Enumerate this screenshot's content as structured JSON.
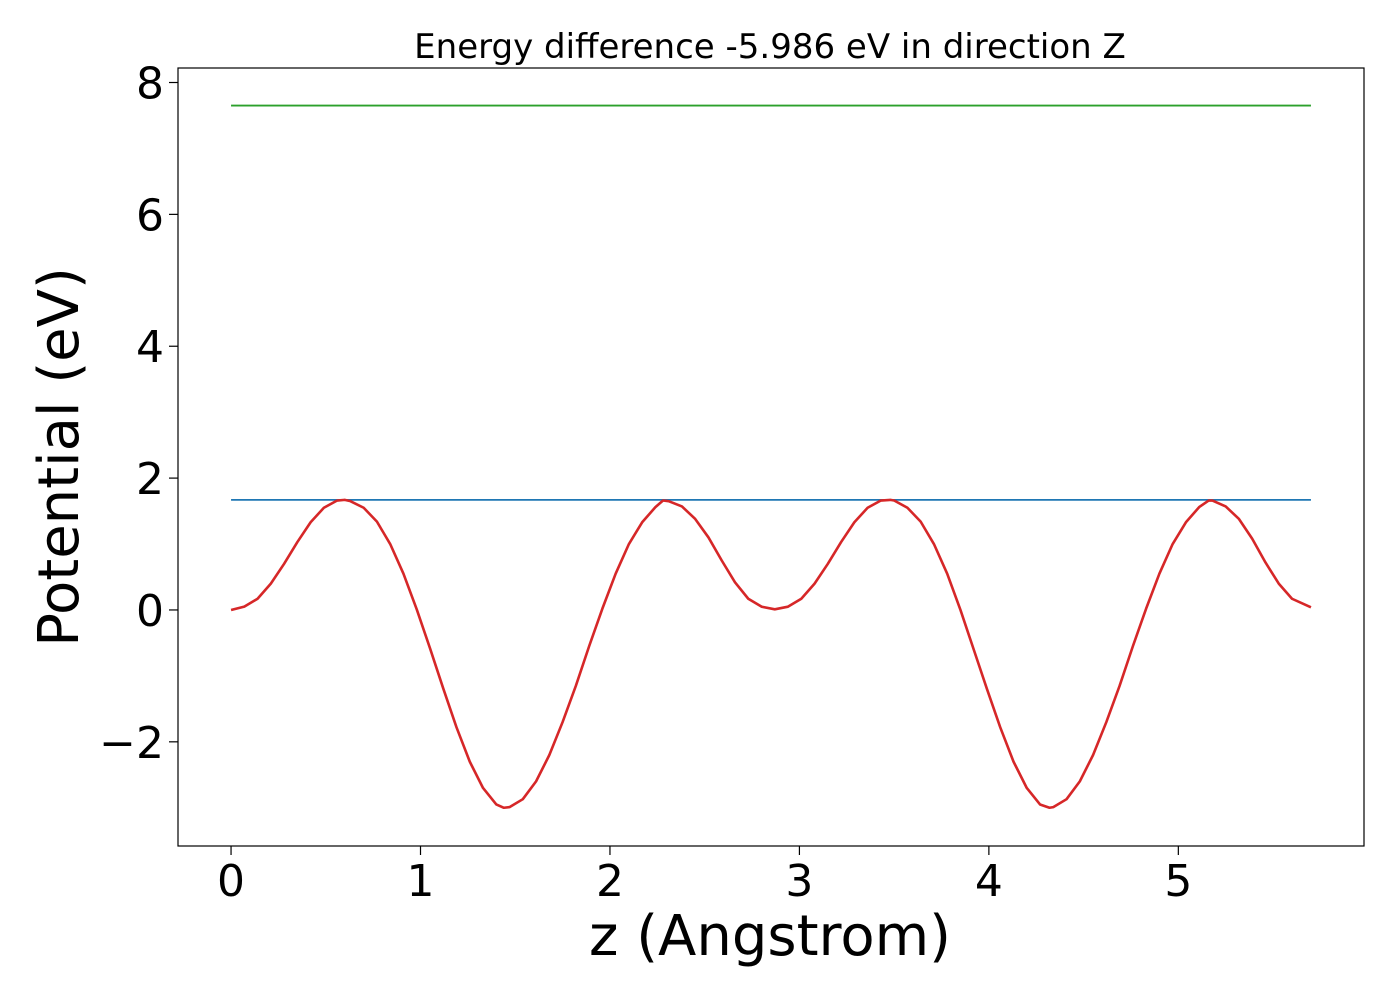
{
  "chart_data": {
    "type": "line",
    "title": "Energy difference -5.986 eV in direction Z",
    "xlabel": "z (Angstrom)",
    "ylabel": "Potential (eV)",
    "xlim": [
      -0.28,
      5.98
    ],
    "ylim": [
      -3.58,
      8.22
    ],
    "xticks": [
      0,
      1,
      2,
      3,
      4,
      5
    ],
    "xtick_labels": [
      "0",
      "1",
      "2",
      "3",
      "4",
      "5"
    ],
    "yticks": [
      -2,
      0,
      2,
      4,
      6,
      8
    ],
    "ytick_labels": [
      "−2",
      "0",
      "2",
      "4",
      "6",
      "8"
    ],
    "grid": false,
    "legend": null,
    "series": [
      {
        "color": "#2ca02c",
        "x": [
          0,
          5.7
        ],
        "y": [
          7.65,
          7.65
        ]
      },
      {
        "color": "#1f77b4",
        "x": [
          0,
          5.7
        ],
        "y": [
          1.67,
          1.67
        ]
      },
      {
        "color": "#d62728",
        "x": [
          0,
          0.07,
          0.14,
          0.21,
          0.28,
          0.35,
          0.42,
          0.49,
          0.56,
          0.6,
          0.63,
          0.7,
          0.77,
          0.84,
          0.91,
          0.98,
          1.05,
          1.12,
          1.19,
          1.26,
          1.33,
          1.4,
          1.44,
          1.47,
          1.54,
          1.61,
          1.68,
          1.75,
          1.82,
          1.89,
          1.96,
          2.03,
          2.1,
          2.17,
          2.24,
          2.28,
          2.31,
          2.38,
          2.45,
          2.52,
          2.59,
          2.66,
          2.73,
          2.8,
          2.87,
          2.94,
          3.01,
          3.08,
          3.15,
          3.22,
          3.29,
          3.36,
          3.43,
          3.48,
          3.5,
          3.57,
          3.64,
          3.71,
          3.78,
          3.85,
          3.92,
          3.99,
          4.06,
          4.13,
          4.2,
          4.27,
          4.32,
          4.34,
          4.41,
          4.48,
          4.55,
          4.62,
          4.69,
          4.76,
          4.83,
          4.9,
          4.97,
          5.04,
          5.11,
          5.16,
          5.18,
          5.25,
          5.32,
          5.39,
          5.46,
          5.53,
          5.6,
          5.7
        ],
        "y": [
          0.0,
          0.05,
          0.17,
          0.4,
          0.7,
          1.03,
          1.33,
          1.55,
          1.66,
          1.67,
          1.65,
          1.55,
          1.34,
          1.0,
          0.55,
          0.01,
          -0.58,
          -1.19,
          -1.78,
          -2.3,
          -2.7,
          -2.95,
          -3.0,
          -2.99,
          -2.87,
          -2.6,
          -2.2,
          -1.7,
          -1.15,
          -0.55,
          0.02,
          0.55,
          1.0,
          1.33,
          1.56,
          1.66,
          1.65,
          1.57,
          1.38,
          1.1,
          0.75,
          0.42,
          0.17,
          0.05,
          0.01,
          0.05,
          0.17,
          0.4,
          0.7,
          1.03,
          1.33,
          1.55,
          1.66,
          1.67,
          1.66,
          1.55,
          1.34,
          1.0,
          0.55,
          0.0,
          -0.6,
          -1.2,
          -1.78,
          -2.3,
          -2.7,
          -2.95,
          -3.0,
          -2.99,
          -2.87,
          -2.6,
          -2.2,
          -1.7,
          -1.15,
          -0.55,
          0.02,
          0.55,
          1.0,
          1.33,
          1.56,
          1.66,
          1.66,
          1.57,
          1.38,
          1.08,
          0.72,
          0.4,
          0.17,
          0.04
        ]
      }
    ]
  }
}
